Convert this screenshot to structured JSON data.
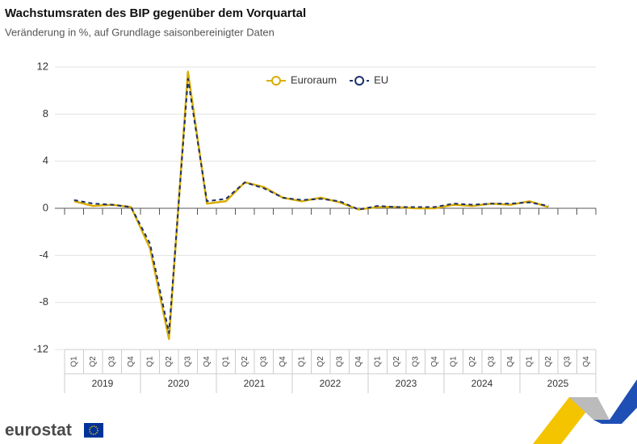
{
  "chart_data": {
    "type": "line",
    "title": "Wachstumsraten des BIP gegenüber dem Vorquartal",
    "subtitle": "Veränderung in %, auf Grundlage saisonbereinigter Daten",
    "categories": [
      "Q1",
      "Q2",
      "Q3",
      "Q4",
      "Q1",
      "Q2",
      "Q3",
      "Q4",
      "Q1",
      "Q2",
      "Q3",
      "Q4",
      "Q1",
      "Q2",
      "Q3",
      "Q4",
      "Q1",
      "Q2",
      "Q3",
      "Q4",
      "Q1",
      "Q2",
      "Q3",
      "Q4",
      "Q1",
      "Q2",
      "Q3",
      "Q4"
    ],
    "years": [
      "2019",
      "2020",
      "2021",
      "2022",
      "2023",
      "2024",
      "2025"
    ],
    "series": [
      {
        "name": "Euroraum",
        "color": "#d9ad00",
        "dashed": false,
        "values": [
          0.6,
          0.2,
          0.3,
          0.1,
          -3.4,
          -11.1,
          11.6,
          0.4,
          0.6,
          2.2,
          1.8,
          0.9,
          0.6,
          0.9,
          0.5,
          -0.1,
          0.1,
          0.1,
          0.0,
          0.0,
          0.3,
          0.2,
          0.4,
          0.3,
          0.6,
          0.1,
          null,
          null
        ]
      },
      {
        "name": "EU",
        "color": "#1b2f6b",
        "dashed": true,
        "values": [
          0.7,
          0.4,
          0.3,
          0.1,
          -3.0,
          -10.6,
          11.0,
          0.6,
          0.8,
          2.2,
          1.7,
          0.9,
          0.7,
          0.8,
          0.6,
          -0.1,
          0.2,
          0.1,
          0.1,
          0.1,
          0.4,
          0.3,
          0.4,
          0.4,
          0.5,
          0.2,
          null,
          null
        ]
      }
    ],
    "ylim": [
      -12,
      12
    ],
    "yticks": [
      12,
      8,
      4,
      0,
      -4,
      -8,
      -12
    ],
    "grid": true
  },
  "footer": {
    "logo": "eurostat"
  }
}
